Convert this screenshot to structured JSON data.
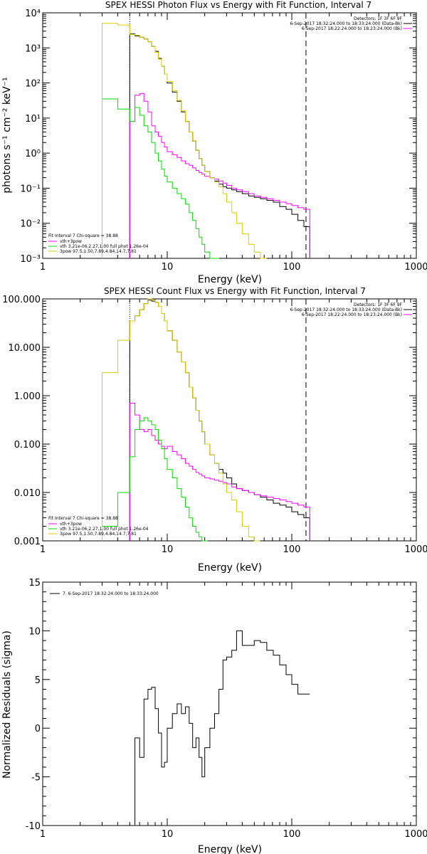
{
  "chart_data": [
    {
      "type": "line",
      "title": "SPEX HESSI Photon Flux vs Energy with Fit Function, Interval 7",
      "xlabel": "Energy (keV)",
      "ylabel": "photons s⁻¹ cm⁻² keV⁻¹",
      "xscale": "log",
      "yscale": "log",
      "xlim": [
        1,
        1000
      ],
      "ylim": [
        0.001,
        10000
      ],
      "xticks": [
        "1",
        "10",
        "100",
        "1000"
      ],
      "yticks": [
        "10⁻³",
        "10⁻²",
        "10⁻¹",
        "10⁰",
        "10¹",
        "10²",
        "10³",
        "10⁴"
      ],
      "legend_top": [
        "Detectors: 1F 3F 6F 9F",
        "6-Sep-2017 18:32:24.000 to 18:33:24.000 (Data-Bk)",
        "6-Sep-2017 18:22:24.000 to 18:23:24.000 (Bk)"
      ],
      "legend_bottom_title": "Fit Interval 7   Chi-square = 38.88",
      "legend_bottom": [
        "vth+3pow",
        "vth 3.21e-06,2.27,1.00  full phot 1.26e-04",
        "3pow 97.5,1.50,7.89,4.84,14.7,7.81"
      ],
      "vlines": [
        5,
        130
      ],
      "series": [
        {
          "name": "Data-Bk",
          "color": "#000000",
          "x": [
            5,
            5.5,
            6,
            6.5,
            7,
            7.5,
            8,
            8.5,
            9,
            9.5,
            10,
            11,
            12,
            13,
            14,
            15,
            16,
            17,
            18,
            19,
            20,
            22,
            24,
            26,
            28,
            30,
            33,
            36,
            40,
            45,
            50,
            56,
            63,
            71,
            80,
            90,
            100,
            112,
            125
          ],
          "y": [
            2500,
            2200,
            2000,
            1800,
            1500,
            1100,
            800,
            500,
            300,
            180,
            100,
            55,
            30,
            15,
            8,
            4,
            2.2,
            1.2,
            0.7,
            0.45,
            0.3,
            0.2,
            0.16,
            0.13,
            0.11,
            0.1,
            0.09,
            0.08,
            0.07,
            0.06,
            0.055,
            0.05,
            0.045,
            0.04,
            0.03,
            0.025,
            0.018,
            0.012,
            0.008
          ]
        },
        {
          "name": "vth+3pow",
          "color": "#ff00ff",
          "x": [
            5,
            5.5,
            6,
            6.5,
            7,
            7.5,
            8,
            8.5,
            9,
            9.5,
            10,
            11,
            12,
            13,
            14,
            15,
            16,
            17,
            18,
            19,
            20,
            22,
            24,
            26,
            28,
            30,
            33,
            36,
            40,
            45,
            50,
            56,
            63,
            71,
            80,
            90,
            100,
            112,
            125
          ],
          "y": [
            8,
            45,
            50,
            30,
            15,
            6,
            4,
            3,
            2,
            1.5,
            1.1,
            0.9,
            0.75,
            0.6,
            0.5,
            0.45,
            0.38,
            0.32,
            0.28,
            0.25,
            0.22,
            0.2,
            0.18,
            0.16,
            0.14,
            0.12,
            0.1,
            0.09,
            0.08,
            0.07,
            0.06,
            0.055,
            0.05,
            0.045,
            0.04,
            0.036,
            0.032,
            0.028,
            0.025
          ]
        },
        {
          "name": "vth",
          "color": "#00dd00",
          "x": [
            3,
            4,
            5,
            5.5,
            6,
            6.5,
            7,
            7.5,
            8,
            8.5,
            9,
            9.5,
            10,
            11,
            12,
            13,
            14,
            15,
            16,
            17,
            18,
            19,
            20,
            22,
            24
          ],
          "y": [
            35,
            18,
            8,
            20,
            12,
            6,
            4,
            2,
            1,
            0.6,
            0.35,
            0.22,
            0.15,
            0.1,
            0.07,
            0.05,
            0.035,
            0.02,
            0.012,
            0.007,
            0.004,
            0.0025,
            0.0015,
            0.001,
            0.001
          ]
        },
        {
          "name": "3pow",
          "color": "#ddcc00",
          "x": [
            3,
            4,
            5,
            5.5,
            6,
            6.5,
            7,
            7.5,
            8,
            8.5,
            9,
            9.5,
            10,
            11,
            12,
            13,
            14,
            15,
            16,
            17,
            18,
            19,
            20,
            22,
            24,
            26,
            28,
            30,
            33,
            36,
            40,
            45,
            50,
            56
          ],
          "y": [
            5000,
            4500,
            2400,
            2300,
            2000,
            1800,
            1500,
            1100,
            750,
            480,
            300,
            180,
            110,
            60,
            32,
            16,
            8,
            4,
            2.2,
            1.2,
            0.7,
            0.45,
            0.3,
            0.2,
            0.15,
            0.11,
            0.07,
            0.04,
            0.02,
            0.01,
            0.005,
            0.0025,
            0.0015,
            0.001
          ]
        }
      ]
    },
    {
      "type": "line",
      "title": "SPEX HESSI Count Flux vs Energy with Fit Function, Interval 7",
      "xlabel": "Energy (keV)",
      "ylabel": "",
      "xscale": "log",
      "yscale": "log",
      "xlim": [
        1,
        1000
      ],
      "ylim": [
        0.001,
        100
      ],
      "xticks": [
        "1",
        "10",
        "100",
        "1000"
      ],
      "yticks": [
        "0.001",
        "0.010",
        "0.100",
        "1.000",
        "10.000",
        "100.000"
      ],
      "legend_top": [
        "Detectors: 1F 3F 6F 9F",
        "6-Sep-2017 18:32:24.000 to 18:33:24.000 (Data-Bk)",
        "6-Sep-2017 18:22:24.000 to 18:23:24.000 (Bk)"
      ],
      "legend_bottom_title": "Fit Interval 7   Chi-square = 38.88",
      "legend_bottom": [
        "vth+3pow",
        "vth 3.21e-06,2.27,1.00  full phot 1.26e-04",
        "3pow 97.5,1.50,7.89,4.84,14.7,7.81"
      ],
      "vlines": [
        5,
        130
      ],
      "series": [
        {
          "name": "Data-Bk",
          "color": "#000000",
          "x": [
            5,
            5.5,
            6,
            6.5,
            7,
            7.5,
            8,
            8.5,
            9,
            9.5,
            10,
            11,
            12,
            13,
            14,
            15,
            16,
            17,
            18,
            19,
            20,
            22,
            24,
            26,
            28,
            30,
            33,
            36,
            40,
            45,
            50,
            56,
            63,
            71,
            80,
            90,
            100,
            112,
            125
          ],
          "y": [
            35,
            45,
            60,
            80,
            95,
            90,
            85,
            70,
            50,
            35,
            22,
            14,
            8,
            5,
            3,
            1.5,
            0.9,
            0.5,
            0.3,
            0.18,
            0.1,
            0.06,
            0.04,
            0.03,
            0.025,
            0.02,
            0.015,
            0.012,
            0.011,
            0.01,
            0.009,
            0.008,
            0.007,
            0.006,
            0.0055,
            0.005,
            0.004,
            0.0035,
            0.003
          ]
        },
        {
          "name": "vth+3pow",
          "color": "#ff00ff",
          "x": [
            5,
            5.5,
            6,
            6.5,
            7,
            7.5,
            8,
            8.5,
            9,
            9.5,
            10,
            11,
            12,
            13,
            14,
            15,
            16,
            17,
            18,
            19,
            20,
            22,
            24,
            26,
            28,
            30,
            33,
            36,
            40,
            45,
            50,
            56,
            63,
            71,
            80,
            90,
            100,
            112,
            125
          ],
          "y": [
            0.7,
            0.4,
            0.2,
            0.18,
            0.2,
            0.15,
            0.12,
            0.1,
            0.09,
            0.08,
            0.09,
            0.07,
            0.06,
            0.05,
            0.04,
            0.035,
            0.03,
            0.026,
            0.024,
            0.022,
            0.02,
            0.019,
            0.018,
            0.017,
            0.016,
            0.015,
            0.013,
            0.012,
            0.011,
            0.01,
            0.009,
            0.0085,
            0.008,
            0.0075,
            0.007,
            0.0065,
            0.006,
            0.0055,
            0.005
          ]
        },
        {
          "name": "vth",
          "color": "#00dd00",
          "x": [
            3,
            4,
            5,
            5.5,
            6,
            6.5,
            7,
            7.5,
            8,
            8.5,
            9,
            9.5,
            10,
            11,
            12,
            13,
            14,
            15,
            16,
            17,
            18,
            19,
            20
          ],
          "y": [
            0.002,
            0.01,
            0.055,
            0.2,
            0.3,
            0.35,
            0.3,
            0.25,
            0.2,
            0.12,
            0.08,
            0.05,
            0.03,
            0.02,
            0.012,
            0.008,
            0.005,
            0.003,
            0.002,
            0.0015,
            0.0012,
            0.001,
            0.001
          ]
        },
        {
          "name": "3pow",
          "color": "#ddcc00",
          "x": [
            3,
            4,
            5,
            5.5,
            6,
            6.5,
            7,
            7.5,
            8,
            8.5,
            9,
            9.5,
            10,
            11,
            12,
            13,
            14,
            15,
            16,
            17,
            18,
            19,
            20,
            22,
            24,
            26,
            28,
            30,
            33,
            36,
            40,
            45,
            50
          ],
          "y": [
            3,
            14,
            35,
            45,
            60,
            80,
            100,
            95,
            85,
            70,
            50,
            35,
            22,
            14,
            8,
            5,
            3,
            1.5,
            0.9,
            0.5,
            0.3,
            0.18,
            0.1,
            0.06,
            0.04,
            0.025,
            0.015,
            0.01,
            0.007,
            0.004,
            0.002,
            0.0012,
            0.001
          ]
        }
      ]
    },
    {
      "type": "line",
      "title": "",
      "xlabel": "Energy (keV)",
      "ylabel": "Normalized Residuals (sigma)",
      "xscale": "log",
      "yscale": "linear",
      "xlim": [
        1,
        1000
      ],
      "ylim": [
        -10,
        15
      ],
      "xticks": [
        "1",
        "10",
        "100",
        "1000"
      ],
      "yticks": [
        "-10",
        "-5",
        "0",
        "5",
        "10",
        "15"
      ],
      "legend": [
        "7.  6-Sep-2017 18:32:24.000 to 18:33:24.000"
      ],
      "series": [
        {
          "name": "7.  6-Sep-2017 18:32:24.000 to 18:33:24.000",
          "color": "#000000",
          "x": [
            5,
            5.5,
            6,
            6.5,
            7,
            7.5,
            8,
            8.5,
            9,
            9.5,
            10,
            11,
            12,
            13,
            14,
            15,
            16,
            17,
            18,
            19,
            20,
            22,
            24,
            26,
            28,
            30,
            33,
            36,
            40,
            45,
            50,
            56,
            63,
            71,
            80,
            90,
            100,
            112,
            125
          ],
          "y": [
            -10,
            -1,
            -3,
            3,
            4,
            4.2,
            2,
            -0.5,
            -4,
            -3.5,
            0,
            1.5,
            2.5,
            1.5,
            2.2,
            0.5,
            -2,
            -1,
            -3,
            -5,
            -2,
            0,
            1.5,
            4,
            7,
            7.3,
            8,
            10,
            8.5,
            8.5,
            9,
            8.8,
            8,
            7.5,
            6.5,
            5.5,
            4.5,
            3.5,
            3.5
          ]
        }
      ]
    }
  ]
}
